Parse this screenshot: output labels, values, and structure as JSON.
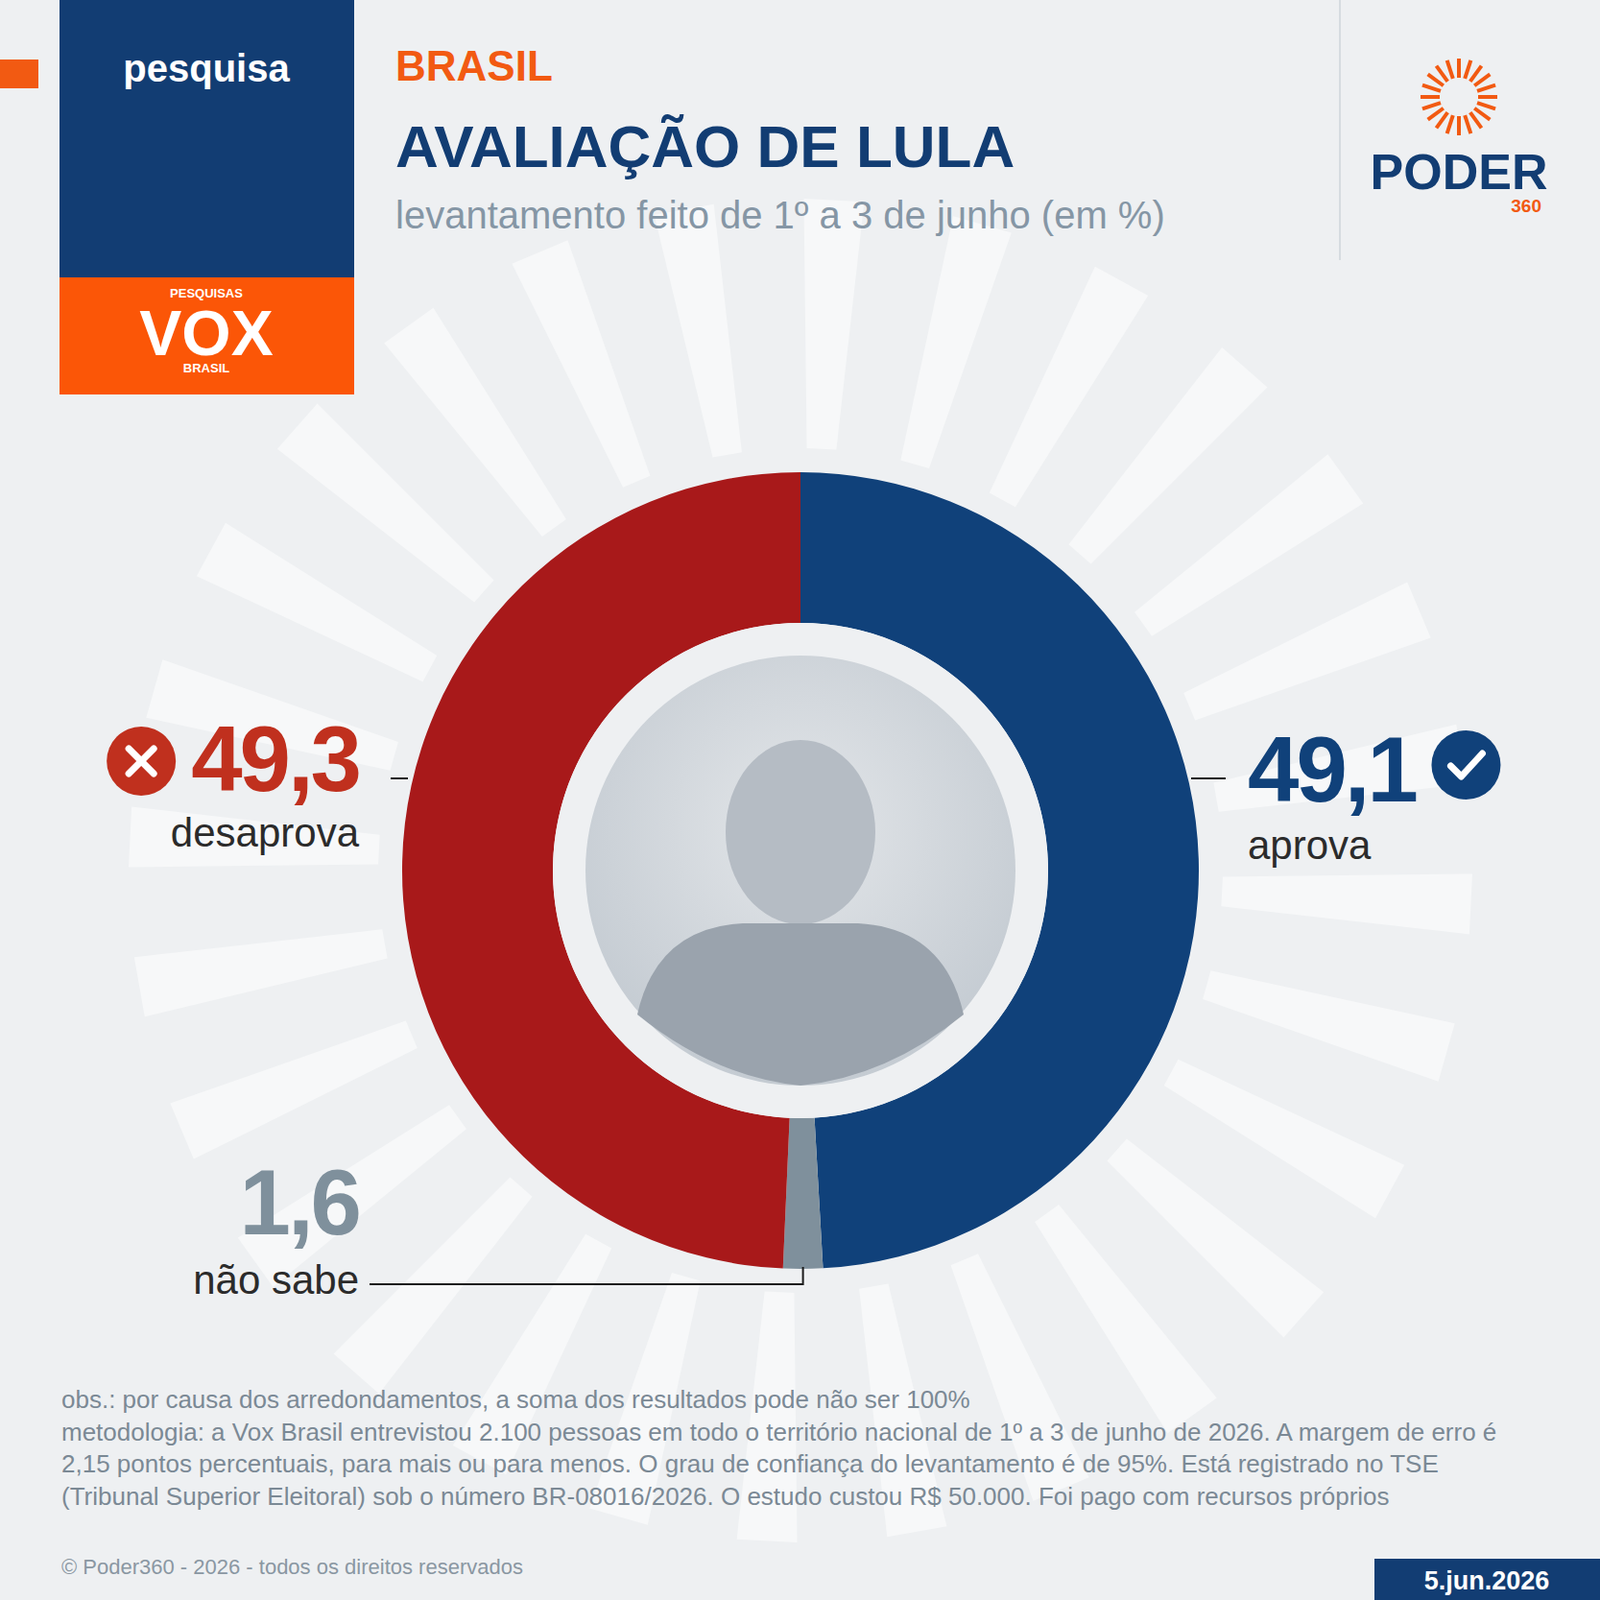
{
  "chart_data": {
    "type": "donut",
    "tag": "pesquisa",
    "section": "BRASIL",
    "title": "AVALIAÇÃO DE LULA",
    "subtitle": "levantamento feito de 1º a 3 de junho (em %)",
    "source_logo": {
      "top": "PESQUISAS",
      "name": "VOX",
      "bottom": "BRASIL"
    },
    "publisher_logo": {
      "name": "PODER",
      "number": "360"
    },
    "categories": [
      "aprova",
      "não sabe",
      "desaprova"
    ],
    "values": [
      49.1,
      1.6,
      49.3
    ],
    "value_labels": [
      "49,1",
      "1,6",
      "49,3"
    ],
    "colors": [
      "#10417a",
      "#7f909c",
      "#a8191a"
    ],
    "data_labels": true,
    "notes": [
      "obs.: por causa dos arredondamentos, a soma dos resultados pode não ser 100%",
      "metodologia: a Vox Brasil entrevistou 2.100 pessoas em todo o território nacional de 1º a 3 de junho de 2026. A margem de erro é 2,15 pontos percentuais, para mais ou para menos. O grau de confiança do levantamento é de 95%. Está registrado no TSE (Tribunal Superior Eleitoral) sob o número BR-08016/2026. O estudo custou R$ 50.000. Foi pago com recursos próprios"
    ],
    "copyright": "© Poder360 - 2026 - todos os direitos reservados",
    "date": "5.jun.2026"
  }
}
